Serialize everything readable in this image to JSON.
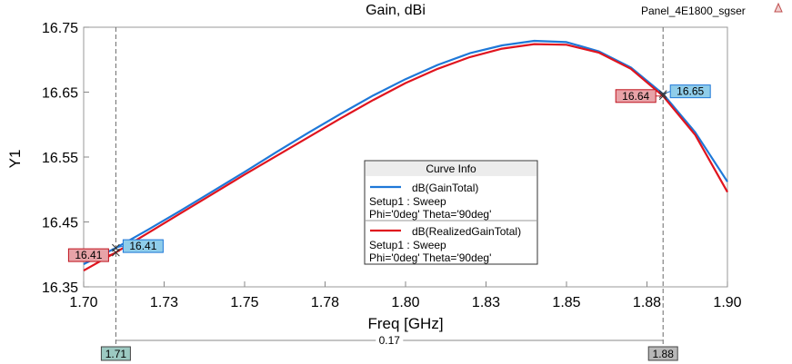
{
  "header": {
    "title": "Gain, dBi",
    "project_label": "Panel_4E1800_sgser"
  },
  "chart_data": {
    "type": "line",
    "title": "Gain, dBi",
    "xlabel": "Freq [GHz]",
    "ylabel": "Y1",
    "xlim": [
      1.7,
      1.9
    ],
    "ylim": [
      16.35,
      16.75
    ],
    "x_ticks": [
      1.7,
      1.725,
      1.75,
      1.775,
      1.8,
      1.825,
      1.85,
      1.875,
      1.9
    ],
    "x_tick_labels": [
      "1.70",
      "1.73",
      "1.75",
      "1.78",
      "1.80",
      "1.83",
      "1.85",
      "1.88",
      "1.90"
    ],
    "y_ticks": [
      16.35,
      16.45,
      16.55,
      16.65,
      16.75
    ],
    "y_tick_labels": [
      "16.35",
      "16.45",
      "16.55",
      "16.65",
      "16.75"
    ],
    "series": [
      {
        "name": "dB(GainTotal)",
        "color": "#1e78d8",
        "x": [
          1.7,
          1.71,
          1.72,
          1.73,
          1.74,
          1.75,
          1.76,
          1.77,
          1.78,
          1.79,
          1.8,
          1.81,
          1.82,
          1.83,
          1.84,
          1.85,
          1.86,
          1.87,
          1.88,
          1.89,
          1.9
        ],
        "y": [
          16.385,
          16.41,
          16.438,
          16.467,
          16.497,
          16.527,
          16.558,
          16.588,
          16.617,
          16.645,
          16.67,
          16.692,
          16.71,
          16.722,
          16.729,
          16.727,
          16.713,
          16.688,
          16.647,
          16.588,
          16.512
        ]
      },
      {
        "name": "dB(RealizedGainTotal)",
        "color": "#e0141e",
        "x": [
          1.7,
          1.71,
          1.72,
          1.73,
          1.74,
          1.75,
          1.76,
          1.77,
          1.78,
          1.79,
          1.8,
          1.81,
          1.82,
          1.83,
          1.84,
          1.85,
          1.86,
          1.87,
          1.88,
          1.89,
          1.9
        ],
        "y": [
          16.375,
          16.403,
          16.433,
          16.463,
          16.493,
          16.523,
          16.552,
          16.581,
          16.61,
          16.638,
          16.664,
          16.686,
          16.704,
          16.717,
          16.724,
          16.723,
          16.711,
          16.686,
          16.644,
          16.584,
          16.496
        ]
      }
    ],
    "markers": [
      {
        "x": 1.71,
        "x_label": "1.71",
        "values": [
          {
            "series": 0,
            "label": "16.41"
          },
          {
            "series": 1,
            "label": "16.41"
          }
        ]
      },
      {
        "x": 1.88,
        "x_label": "1.88",
        "values": [
          {
            "series": 0,
            "label": "16.65"
          },
          {
            "series": 1,
            "label": "16.64"
          }
        ]
      }
    ],
    "delta_label": "0.17",
    "legend": {
      "title": "Curve Info",
      "position": "center",
      "entries": [
        {
          "name": "dB(GainTotal)",
          "line1": "Setup1 : Sweep",
          "line2": "Phi='0deg' Theta='90deg'"
        },
        {
          "name": "dB(RealizedGainTotal)",
          "line1": "Setup1 : Sweep",
          "line2": "Phi='0deg' Theta='90deg'"
        }
      ]
    },
    "grid": false
  },
  "colors": {
    "gain": "#1e78d8",
    "realized": "#e0141e",
    "marker_blue_fill": "#8fcdea",
    "marker_red_fill": "#e8a3a8",
    "marker_x_fill": "#9cc9c1",
    "marker_x2_fill": "#b8b8b8"
  }
}
